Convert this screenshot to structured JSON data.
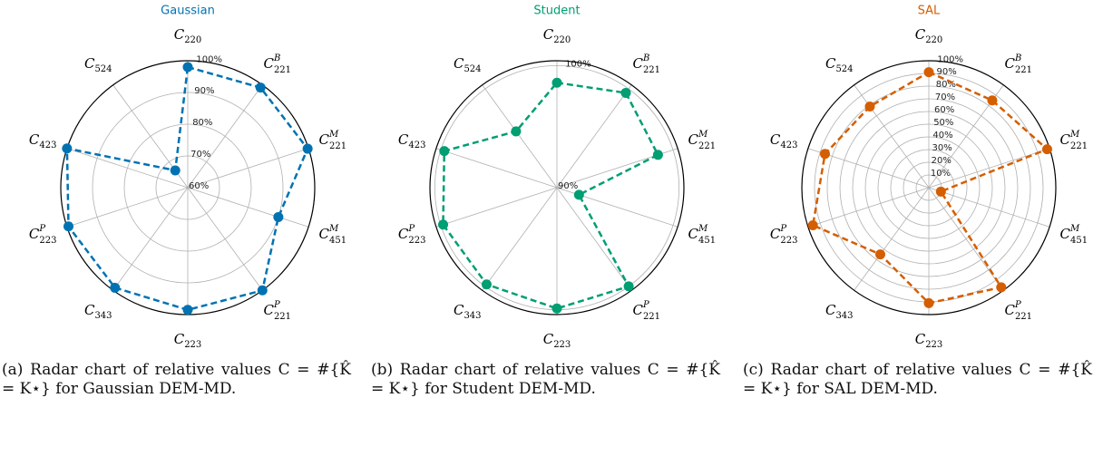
{
  "chart_data": [
    {
      "type": "radar",
      "title": "Gaussian",
      "color": "#0072b2",
      "categories": [
        {
          "symbol": "C",
          "sub": "220"
        },
        {
          "symbol": "C",
          "sup": "B",
          "sub": "221"
        },
        {
          "symbol": "C",
          "sup": "M",
          "sub": "221"
        },
        {
          "symbol": "C",
          "sup": "M",
          "sub": "451"
        },
        {
          "symbol": "C",
          "sup": "P",
          "sub": "221"
        },
        {
          "symbol": "C",
          "sub": "223"
        },
        {
          "symbol": "C",
          "sub": "343"
        },
        {
          "symbol": "C",
          "sup": "P",
          "sub": "223"
        },
        {
          "symbol": "C",
          "sub": "423"
        },
        {
          "symbol": "C",
          "sub": "524"
        }
      ],
      "values": [
        98,
        99,
        99.7,
        90,
        100,
        98.5,
        99,
        99.5,
        100,
        66.7
      ],
      "ylim": [
        60,
        100
      ],
      "yticks": [
        {
          "value": 60,
          "label": "60%"
        },
        {
          "value": 70,
          "label": "70%"
        },
        {
          "value": 80,
          "label": "80%"
        },
        {
          "value": 90,
          "label": "90%"
        },
        {
          "value": 100,
          "label": "100%"
        }
      ],
      "grid": true,
      "caption": "(a) Radar chart of relative values C = #{K̂ = K⋆} for Gaussian DEM-MD."
    },
    {
      "type": "radar",
      "title": "Student",
      "color": "#009e73",
      "categories": [
        {
          "symbol": "C",
          "sub": "220"
        },
        {
          "symbol": "C",
          "sup": "B",
          "sub": "221"
        },
        {
          "symbol": "C",
          "sup": "M",
          "sub": "221"
        },
        {
          "symbol": "C",
          "sup": "M",
          "sub": "451"
        },
        {
          "symbol": "C",
          "sup": "P",
          "sub": "221"
        },
        {
          "symbol": "C",
          "sub": "223"
        },
        {
          "symbol": "C",
          "sub": "343"
        },
        {
          "symbol": "C",
          "sup": "P",
          "sub": "223"
        },
        {
          "symbol": "C",
          "sub": "423"
        },
        {
          "symbol": "C",
          "sub": "524"
        }
      ],
      "values": [
        98.6,
        99.6,
        98.7,
        91.9,
        100,
        99.9,
        99.8,
        99.8,
        99.7,
        95.7
      ],
      "ylim": [
        90,
        100.4
      ],
      "yticks": [
        {
          "value": 90,
          "label": "90%"
        },
        {
          "value": 100,
          "label": "100%"
        }
      ],
      "grid": true,
      "caption": "(b) Radar chart of relative values C = #{K̂ = K⋆} for Student DEM-MD."
    },
    {
      "type": "radar",
      "title": "SAL",
      "color": "#d55e00",
      "categories": [
        {
          "symbol": "C",
          "sub": "220"
        },
        {
          "symbol": "C",
          "sup": "B",
          "sub": "221"
        },
        {
          "symbol": "C",
          "sup": "M",
          "sub": "221"
        },
        {
          "symbol": "C",
          "sup": "M",
          "sub": "451"
        },
        {
          "symbol": "C",
          "sup": "P",
          "sub": "221"
        },
        {
          "symbol": "C",
          "sub": "223"
        },
        {
          "symbol": "C",
          "sub": "343"
        },
        {
          "symbol": "C",
          "sup": "P",
          "sub": "223"
        },
        {
          "symbol": "C",
          "sub": "423"
        },
        {
          "symbol": "C",
          "sub": "524"
        }
      ],
      "values": [
        91,
        85,
        98,
        10,
        97,
        91,
        65,
        96,
        86,
        79
      ],
      "ylim": [
        0,
        100
      ],
      "yticks": [
        {
          "value": 10,
          "label": "10%"
        },
        {
          "value": 20,
          "label": "20%"
        },
        {
          "value": 30,
          "label": "30%"
        },
        {
          "value": 40,
          "label": "40%"
        },
        {
          "value": 50,
          "label": "50%"
        },
        {
          "value": 60,
          "label": "60%"
        },
        {
          "value": 70,
          "label": "70%"
        },
        {
          "value": 80,
          "label": "80%"
        },
        {
          "value": 90,
          "label": "90%"
        },
        {
          "value": 100,
          "label": "100%"
        }
      ],
      "grid": true,
      "caption": "(c) Radar chart of relative values C = #{K̂ = K⋆} for SAL DEM-MD."
    }
  ]
}
